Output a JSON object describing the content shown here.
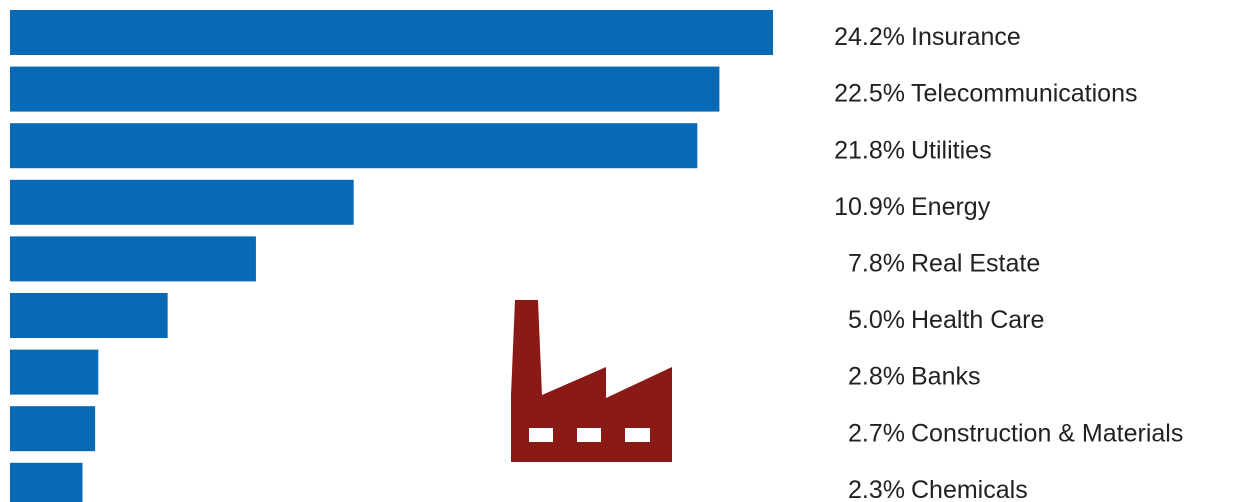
{
  "chart_data": {
    "type": "bar",
    "orientation": "horizontal",
    "categories": [
      "Insurance",
      "Telecommunications",
      "Utilities",
      "Energy",
      "Real Estate",
      "Health Care",
      "Banks",
      "Construction & Materials",
      "Chemicals"
    ],
    "values": [
      24.2,
      22.5,
      21.8,
      10.9,
      7.8,
      5.0,
      2.8,
      2.7,
      2.3
    ],
    "value_labels": [
      "24.2%",
      "22.5%",
      "21.8%",
      "10.9%",
      "7.8%",
      "5.0%",
      "2.8%",
      "2.7%",
      "2.3%"
    ],
    "color": "#0869b4"
  }
}
